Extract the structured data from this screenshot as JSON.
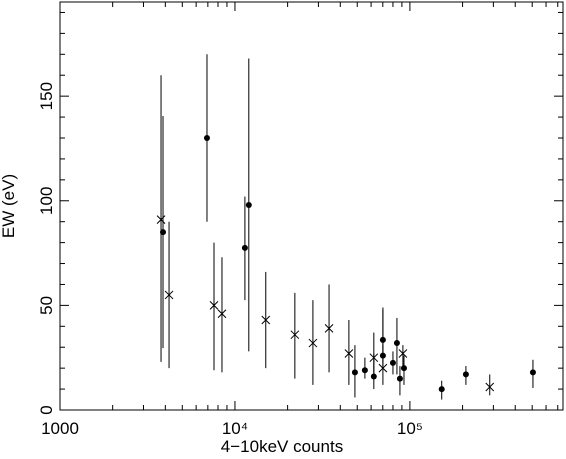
{
  "chart_data": {
    "type": "scatter",
    "xlabel": "4−10keV counts",
    "ylabel": "EW (eV)",
    "xscale": "log",
    "xlim": [
      1000,
      750000
    ],
    "ylim": [
      0,
      195
    ],
    "xticks": [
      1000,
      {
        "value": 10000,
        "label": "10⁴"
      },
      {
        "value": 100000,
        "label": "10⁵"
      }
    ],
    "xminorticks": [
      2000,
      3000,
      4000,
      5000,
      6000,
      7000,
      8000,
      9000,
      20000,
      30000,
      40000,
      50000,
      60000,
      70000,
      80000,
      90000,
      200000,
      300000,
      400000,
      500000,
      600000,
      700000
    ],
    "yticks": [
      0,
      50,
      100,
      150
    ],
    "yminorticks": [
      10,
      20,
      30,
      40,
      60,
      70,
      80,
      90,
      110,
      120,
      130,
      140,
      160,
      170,
      180,
      190
    ],
    "series": [
      {
        "marker": "circle",
        "color": "#000000",
        "x": [
          3880,
          6920,
          11400,
          12000,
          48500,
          55300,
          62200,
          70100,
          70100,
          80000,
          84300,
          87700,
          92500,
          152000,
          209000,
          505000
        ],
        "values": [
          85,
          130,
          77.5,
          98,
          18,
          19,
          16,
          33.5,
          26,
          22.5,
          32,
          15,
          20,
          10,
          17,
          18
        ],
        "y_low": [
          29.6,
          90,
          52.5,
          28,
          6,
          15,
          10,
          21,
          23,
          17,
          17,
          7,
          12,
          5,
          12,
          10.5
        ],
        "y_high": [
          140.5,
          170,
          102,
          168,
          31,
          25,
          27,
          48,
          31,
          28,
          44,
          21,
          26,
          14,
          21,
          24
        ]
      },
      {
        "marker": "cross",
        "color": "#000000",
        "x": [
          3780,
          4200,
          7590,
          8430,
          15000,
          22000,
          27900,
          34500,
          44800,
          62200,
          70100,
          91200,
          286000
        ],
        "values": [
          91,
          55,
          50,
          46,
          43,
          36,
          32,
          39,
          27,
          25,
          20,
          27,
          11
        ],
        "y_low": [
          23,
          20,
          19,
          18,
          20,
          15,
          12,
          18,
          12,
          17,
          12,
          19,
          7
        ],
        "y_high": [
          160,
          90,
          80,
          73,
          66,
          56,
          52.5,
          60,
          43,
          37,
          49,
          31,
          17
        ]
      }
    ]
  }
}
